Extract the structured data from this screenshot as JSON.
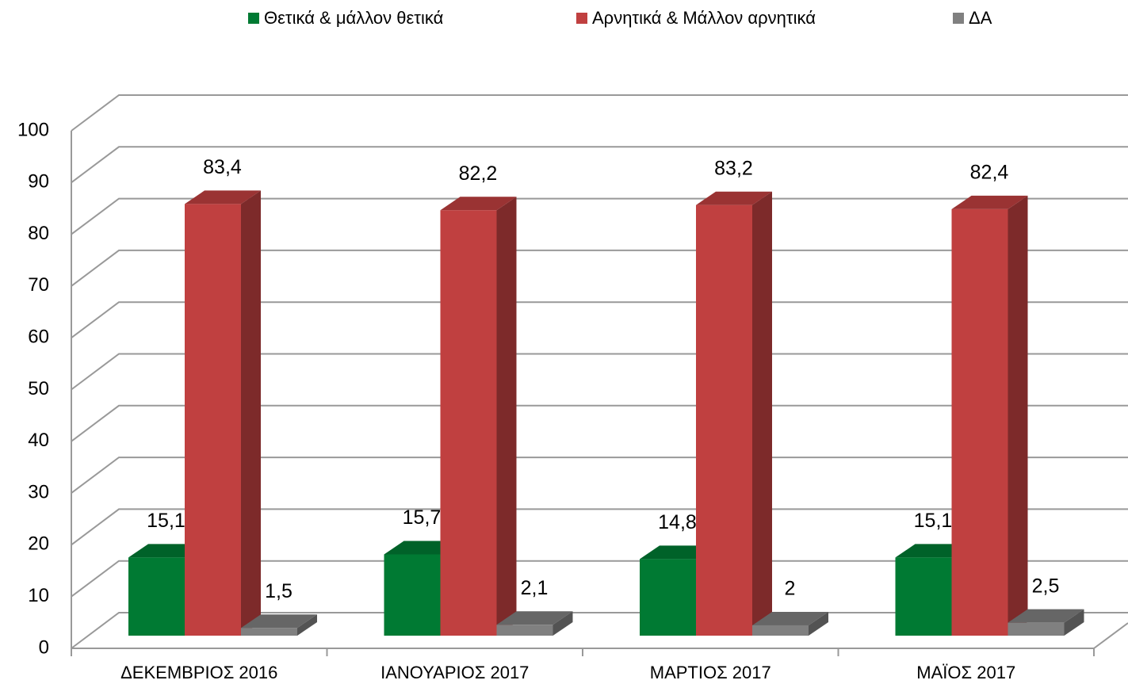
{
  "chart_data": {
    "type": "bar3d",
    "categories": [
      "ΔΕΚΕΜΒΡΙΟΣ 2016",
      "ΙΑΝΟΥΑΡΙΟΣ 2017",
      "ΜΑΡΤΙΟΣ 2017",
      "ΜΑΪΟΣ 2017"
    ],
    "series": [
      {
        "name": "Θετικά & μάλλον θετικά",
        "color": "#007a33",
        "values": [
          15.1,
          15.7,
          14.8,
          15.1
        ],
        "value_labels": [
          "15,1",
          "15,7",
          "14,8",
          "15,1"
        ]
      },
      {
        "name": "Αρνητικά & Μάλλον αρνητικά",
        "color": "#c04040",
        "values": [
          83.4,
          82.2,
          83.2,
          82.4
        ],
        "value_labels": [
          "83,4",
          "82,2",
          "83,2",
          "82,4"
        ]
      },
      {
        "name": "ΔΑ",
        "color": "#808080",
        "values": [
          1.5,
          2.1,
          2,
          2.5
        ],
        "value_labels": [
          "1,5",
          "2,1",
          "2",
          "2,5"
        ]
      }
    ],
    "ylim": [
      0,
      100
    ],
    "yticks": [
      0,
      10,
      20,
      30,
      40,
      50,
      60,
      70,
      80,
      90,
      100
    ],
    "grid": true,
    "legend": "top"
  }
}
